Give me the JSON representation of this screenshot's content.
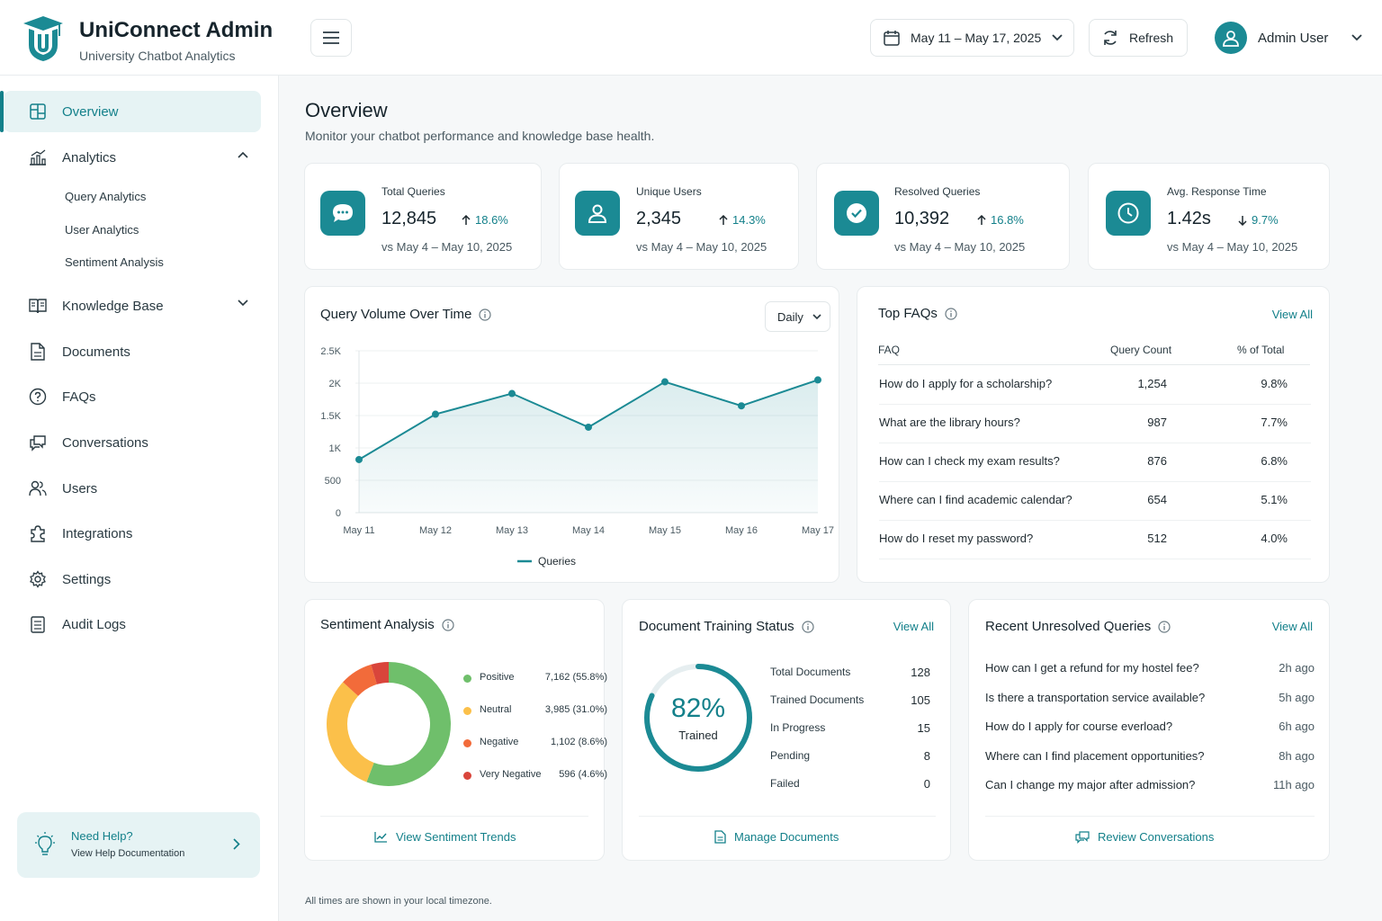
{
  "app": {
    "title": "UniConnect Admin",
    "subtitle": "University Chatbot Analytics"
  },
  "header": {
    "date_range": "May 11 – May 17, 2025",
    "refresh_label": "Refresh",
    "user_name": "Admin User"
  },
  "sidebar": {
    "items": [
      {
        "label": "Overview",
        "icon": "grid-icon",
        "active": true
      },
      {
        "label": "Analytics",
        "icon": "bar-chart-icon",
        "expanded": true
      },
      {
        "label": "Knowledge Base",
        "icon": "book-icon",
        "expanded": false
      },
      {
        "label": "Documents",
        "icon": "file-icon"
      },
      {
        "label": "FAQs",
        "icon": "help-circle-icon"
      },
      {
        "label": "Conversations",
        "icon": "chat-icon"
      },
      {
        "label": "Users",
        "icon": "users-icon"
      },
      {
        "label": "Integrations",
        "icon": "puzzle-icon"
      },
      {
        "label": "Settings",
        "icon": "gear-icon"
      },
      {
        "label": "Audit Logs",
        "icon": "clipboard-icon"
      }
    ],
    "analytics_sub": [
      "Query Analytics",
      "User Analytics",
      "Sentiment Analysis"
    ],
    "help": {
      "title": "Need Help?",
      "subtitle": "View Help Documentation"
    }
  },
  "page": {
    "title": "Overview",
    "subtitle": "Monitor your chatbot performance and knowledge base health.",
    "footnote": "All times are shown in your local timezone."
  },
  "kpis": [
    {
      "label": "Total Queries",
      "value": "12,845",
      "delta": "18.6%",
      "direction": "up",
      "compare": "vs May 4 – May 10, 2025",
      "icon": "chat-bubble-icon"
    },
    {
      "label": "Unique Users",
      "value": "2,345",
      "delta": "14.3%",
      "direction": "up",
      "compare": "vs May 4 – May 10, 2025",
      "icon": "user-icon"
    },
    {
      "label": "Resolved Queries",
      "value": "10,392",
      "delta": "16.8%",
      "direction": "up",
      "compare": "vs May 4 – May 10, 2025",
      "icon": "check-circle-icon"
    },
    {
      "label": "Avg. Response Time",
      "value": "1.42s",
      "delta": "9.7%",
      "direction": "down",
      "compare": "vs May 4 – May 10, 2025",
      "icon": "clock-icon"
    }
  ],
  "query_volume": {
    "title": "Query Volume Over Time",
    "period": "Daily"
  },
  "chart_data": {
    "type": "area",
    "title": "Query Volume Over Time",
    "categories": [
      "May 11",
      "May 12",
      "May 13",
      "May 14",
      "May 15",
      "May 16",
      "May 17"
    ],
    "series": [
      {
        "name": "Queries",
        "values": [
          820,
          1520,
          1840,
          1320,
          2020,
          1650,
          2050
        ]
      }
    ],
    "ylim": [
      0,
      2500
    ],
    "yticks": [
      0,
      500,
      1000,
      1500,
      2000,
      2500
    ],
    "ytick_labels": [
      "0",
      "500",
      "1K",
      "1.5K",
      "2K",
      "2.5K"
    ],
    "grid": true,
    "legend": "bottom",
    "color": "#1b8a94"
  },
  "faqs": {
    "title": "Top FAQs",
    "view_all": "View All",
    "columns": [
      "FAQ",
      "Query Count",
      "% of Total"
    ],
    "rows": [
      {
        "q": "How do I apply for a scholarship?",
        "count": "1,254",
        "pct": "9.8%"
      },
      {
        "q": "What are the library hours?",
        "count": "987",
        "pct": "7.7%"
      },
      {
        "q": "How can I check my exam results?",
        "count": "876",
        "pct": "6.8%"
      },
      {
        "q": "Where can I find academic calendar?",
        "count": "654",
        "pct": "5.1%"
      },
      {
        "q": "How do I reset my password?",
        "count": "512",
        "pct": "4.0%"
      }
    ]
  },
  "sentiment": {
    "title": "Sentiment Analysis",
    "footer": "View Sentiment Trends",
    "items": [
      {
        "name": "Positive",
        "value": "7,162 (55.8%)",
        "pct": 55.8,
        "color": "#6fbf6b"
      },
      {
        "name": "Neutral",
        "value": "3,985 (31.0%)",
        "pct": 31.0,
        "color": "#fbc04a"
      },
      {
        "name": "Negative",
        "value": "1,102 (8.6%)",
        "pct": 8.6,
        "color": "#f26b3a"
      },
      {
        "name": "Very Negative",
        "value": "596 (4.6%)",
        "pct": 4.6,
        "color": "#d9453b"
      }
    ]
  },
  "training": {
    "title": "Document Training Status",
    "view_all": "View All",
    "percent_label": "82%",
    "percent": 82,
    "caption": "Trained",
    "footer": "Manage Documents",
    "rows": [
      {
        "label": "Total Documents",
        "value": "128"
      },
      {
        "label": "Trained Documents",
        "value": "105"
      },
      {
        "label": "In Progress",
        "value": "15"
      },
      {
        "label": "Pending",
        "value": "8"
      },
      {
        "label": "Failed",
        "value": "0"
      }
    ]
  },
  "unresolved": {
    "title": "Recent Unresolved Queries",
    "view_all": "View All",
    "footer": "Review Conversations",
    "rows": [
      {
        "q": "How can I get a refund for my hostel fee?",
        "t": "2h ago"
      },
      {
        "q": "Is there a transportation service available?",
        "t": "5h ago"
      },
      {
        "q": "How do I apply for course everload?",
        "t": "6h ago"
      },
      {
        "q": "Where can I find placement opportunities?",
        "t": "8h ago"
      },
      {
        "q": "Can I change my major after admission?",
        "t": "11h ago"
      }
    ]
  }
}
